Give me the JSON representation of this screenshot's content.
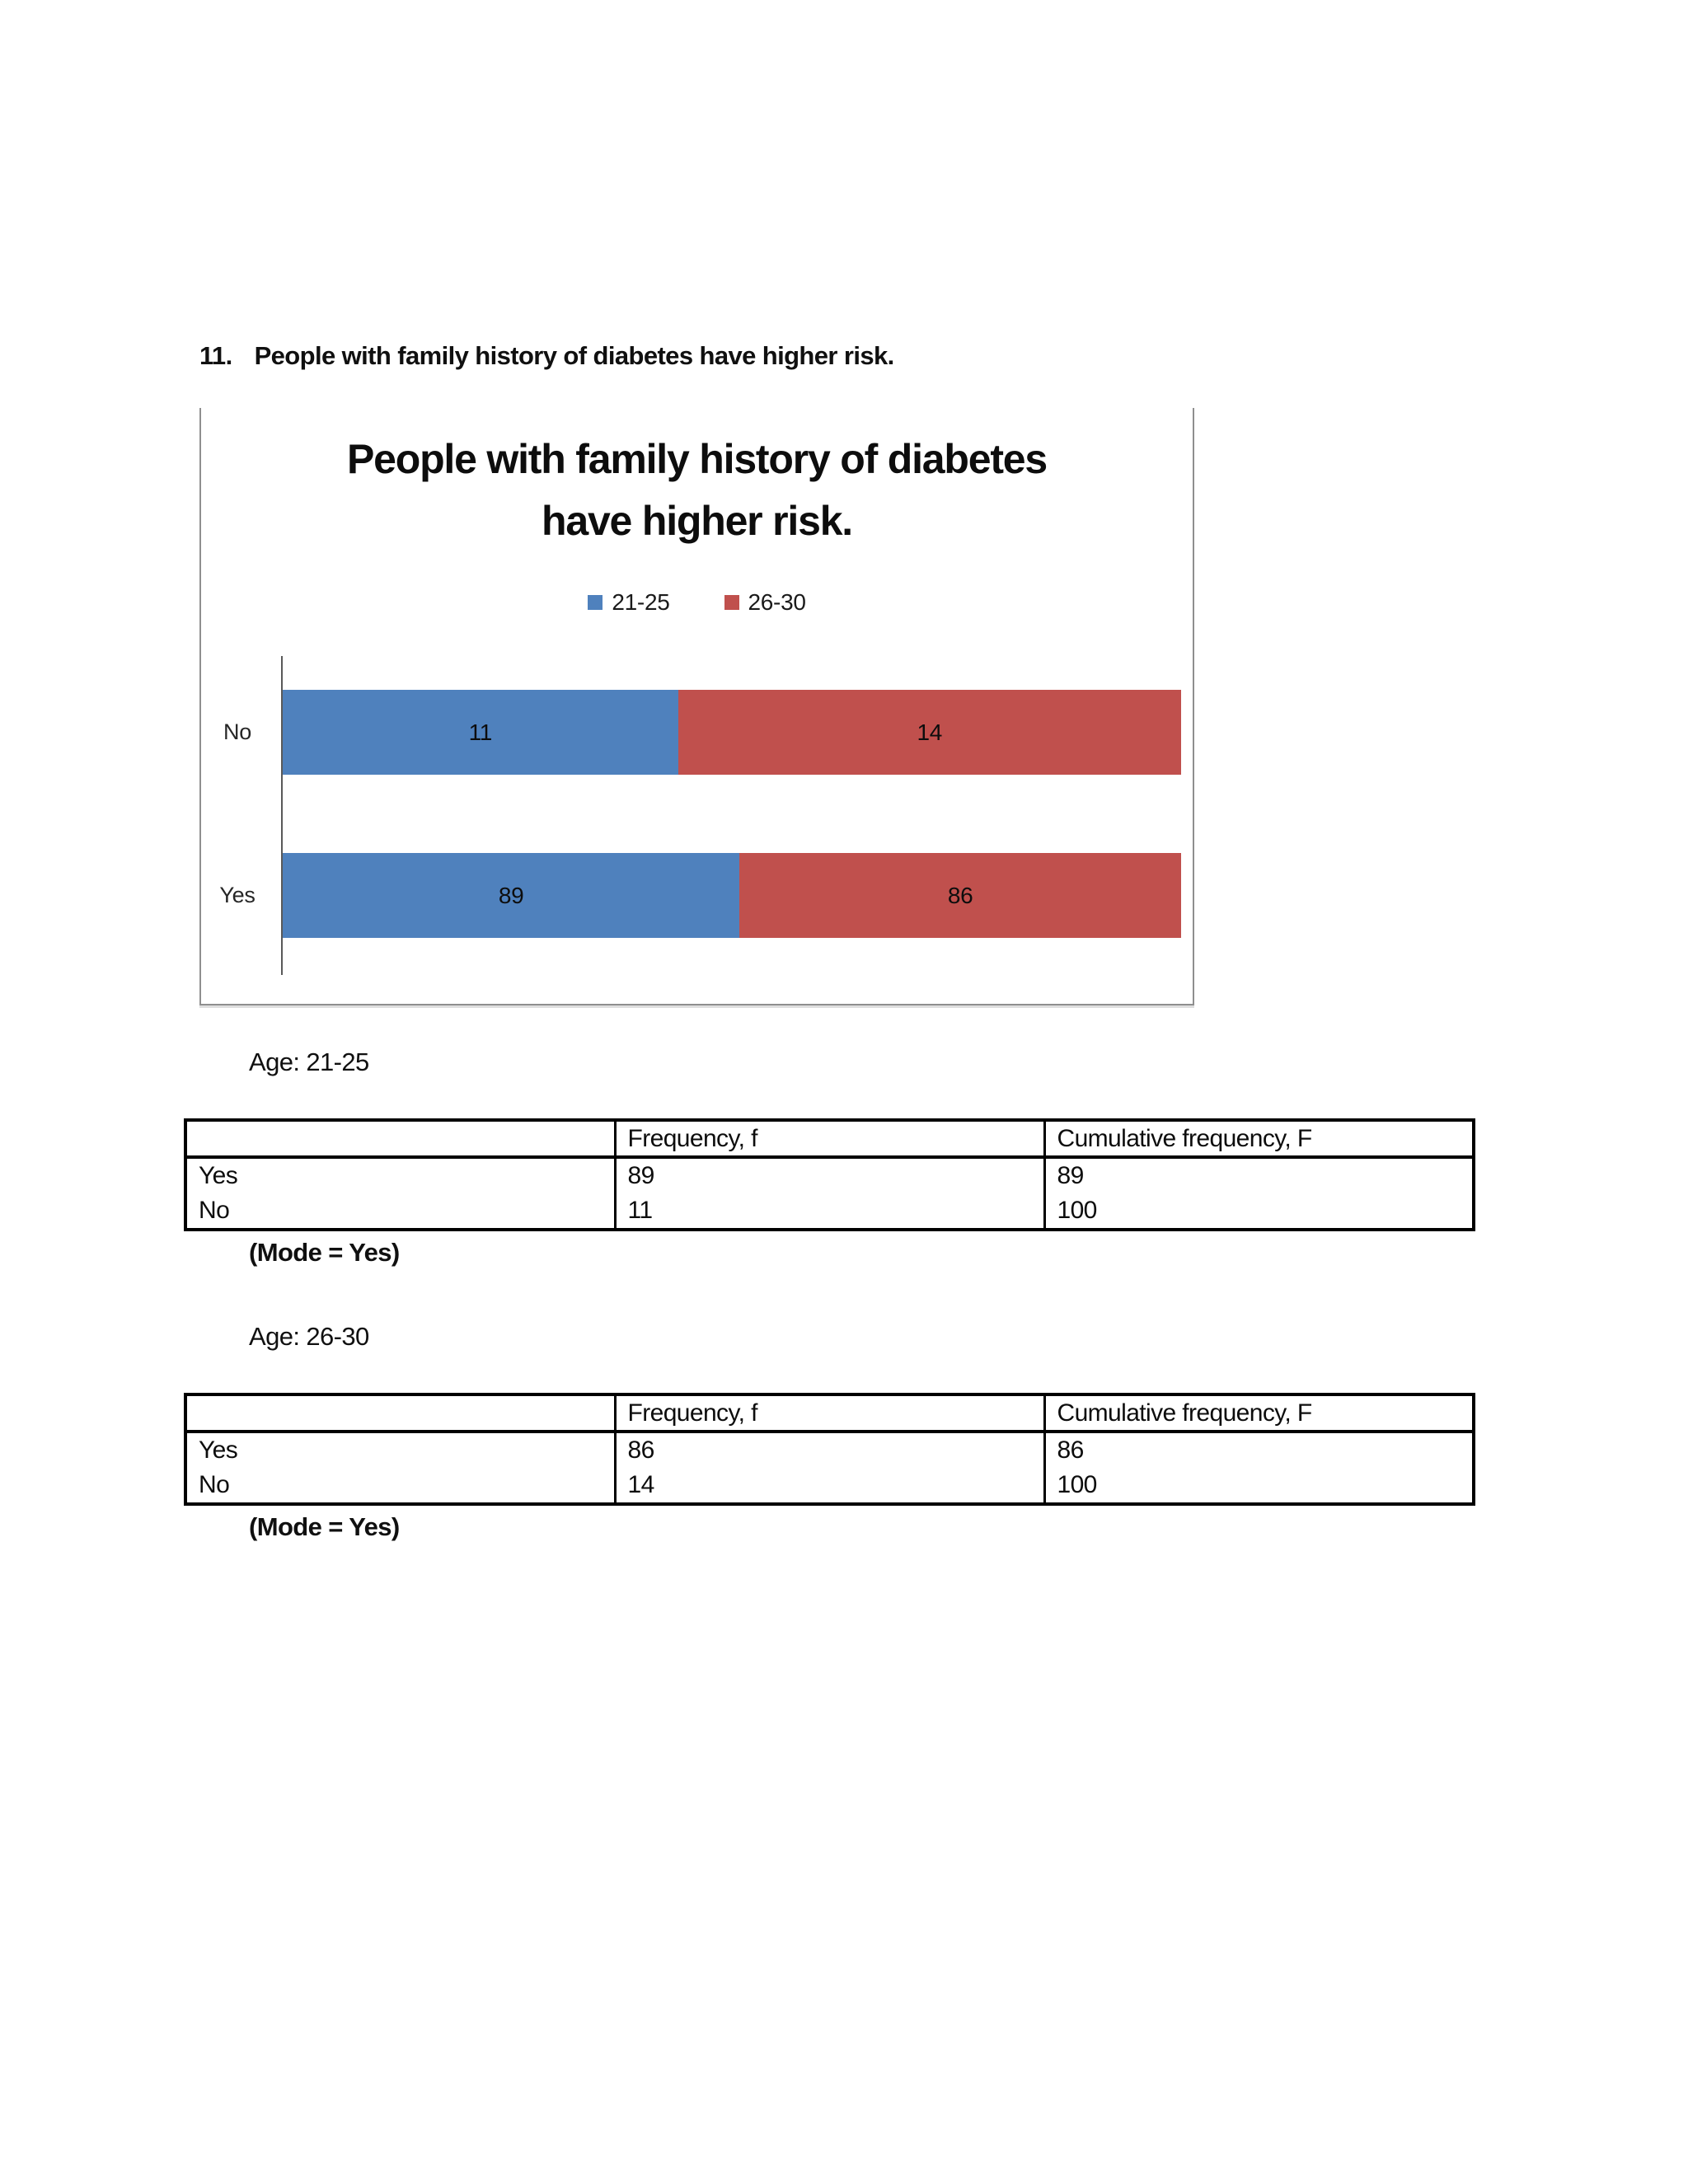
{
  "page": {
    "heading": {
      "number": "11.",
      "text": "People with family history of diabetes have higher risk."
    }
  },
  "chart_data": {
    "type": "bar",
    "subtype": "100%-stacked-horizontal",
    "title": "People with family history of diabetes have higher risk.",
    "title_lines": [
      "People with family history of diabetes",
      "have higher risk."
    ],
    "categories": [
      "No",
      "Yes"
    ],
    "series": [
      {
        "name": "21-25",
        "color": "#4F81BD",
        "values": [
          11,
          89
        ]
      },
      {
        "name": "26-30",
        "color": "#C0504D",
        "values": [
          14,
          86
        ]
      }
    ],
    "legend_position": "top-center",
    "bar_value_labels": true,
    "grid": false,
    "axis": {
      "x_ticks_visible": false,
      "y_line_color": "#595959"
    },
    "frame_border_color": "#8F8F8F"
  },
  "sections": [
    {
      "age_label": "Age: 21-25",
      "table": {
        "headers": [
          "",
          "Frequency, f",
          "Cumulative frequency, F"
        ],
        "rows": [
          [
            "Yes",
            "89",
            "89"
          ],
          [
            "No",
            "11",
            "100"
          ]
        ]
      },
      "mode_note": "(Mode = Yes)"
    },
    {
      "age_label": "Age: 26-30",
      "table": {
        "headers": [
          "",
          "Frequency, f",
          "Cumulative frequency, F"
        ],
        "rows": [
          [
            "Yes",
            "86",
            "86"
          ],
          [
            "No",
            "14",
            "100"
          ]
        ]
      },
      "mode_note": "(Mode = Yes)"
    }
  ]
}
